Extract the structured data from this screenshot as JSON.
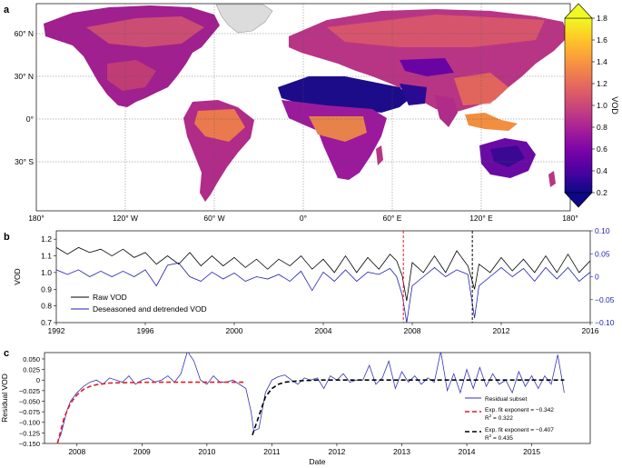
{
  "panel_a": {
    "label": "a",
    "lat_ticks": [
      "60° N",
      "30° N",
      "0°",
      "30° S"
    ],
    "lon_ticks": [
      "180°",
      "120° W",
      "60° W",
      "0°",
      "60° E",
      "120° E",
      "180°"
    ],
    "colorbar": {
      "label": "VOD",
      "ticks": [
        "1.8",
        "1.6",
        "1.4",
        "1.2",
        "1.0",
        "0.8",
        "0.6",
        "0.4",
        "0.2"
      ],
      "colors": [
        "#0d0887",
        "#46039f",
        "#7201a8",
        "#9c179e",
        "#bd3786",
        "#d8576b",
        "#ed7953",
        "#fb9f3a",
        "#fdca26",
        "#f0f921"
      ]
    },
    "colors": {
      "ocean": "#ffffff",
      "ice": "#e0e0e0",
      "desert": "#1d0c8a",
      "forest": "#e8832e",
      "dry": "#8a159c",
      "mid": "#b72a8a"
    }
  },
  "panel_b": {
    "label": "b",
    "legend": [
      "Raw VOD",
      "Deseasoned and detrended VOD"
    ],
    "colors": {
      "raw": "#000000",
      "deseasoned": "#1f1fb4",
      "red": "#e31a1c",
      "black": "#000000"
    }
  },
  "panel_c": {
    "label": "c",
    "legend": {
      "residual": "Residual subset",
      "red_fit": "Exp. fit exponent = −0.342",
      "red_r2_label": "R",
      "red_r2_value": " = 0.322",
      "black_fit": "Exp. fit exponent = −0.407",
      "black_r2_label": "R",
      "black_r2_value": " = 0.435",
      "sup": "2"
    },
    "colors": {
      "residual": "#3333bb",
      "red_fit": "#e31a1c",
      "black_fit": "#000000"
    }
  },
  "chart_data": [
    {
      "type": "heatmap",
      "title": "",
      "colorbar_label": "VOD",
      "colorbar_range": [
        0.2,
        1.8
      ],
      "lat_ticks": [
        "60° N",
        "30° N",
        "0°",
        "30° S"
      ],
      "lon_ticks": [
        "180°",
        "120° W",
        "60° W",
        "0°",
        "60° E",
        "120° E",
        "180°"
      ]
    },
    {
      "type": "line",
      "xlabel": "",
      "ylabel": "VOD",
      "x_ticks": [
        "1992",
        "1996",
        "2000",
        "2004",
        "2008",
        "2012",
        "2016"
      ],
      "y_ticks": [
        "0.7",
        "0.8",
        "0.9",
        "1.0",
        "1.1",
        "1.2"
      ],
      "y2_ticks": [
        "0.10",
        "0.05",
        "0",
        "−0.05",
        "−0.10"
      ],
      "xlim": [
        1992,
        2016
      ],
      "ylim": [
        0.7,
        1.25
      ],
      "y2lim": [
        -0.1,
        0.1
      ],
      "vlines": [
        2007.6,
        2010.7
      ],
      "series": [
        {
          "name": "Raw VOD",
          "x": [
            1992.0,
            1992.5,
            1993.0,
            1993.5,
            1994.0,
            1994.5,
            1995.0,
            1995.5,
            1996.0,
            1996.5,
            1997.0,
            1997.5,
            1998.0,
            1998.5,
            1999.0,
            1999.5,
            2000.0,
            2000.5,
            2001.0,
            2001.5,
            2002.0,
            2002.5,
            2003.0,
            2003.5,
            2004.0,
            2004.5,
            2005.0,
            2005.5,
            2006.0,
            2006.5,
            2007.0,
            2007.3,
            2007.55,
            2007.75,
            2008.0,
            2008.5,
            2009.0,
            2009.5,
            2010.0,
            2010.5,
            2010.8,
            2011.0,
            2011.5,
            2012.0,
            2012.5,
            2013.0,
            2013.5,
            2014.0,
            2014.5,
            2015.0,
            2015.5,
            2016.0
          ],
          "y": [
            1.15,
            1.11,
            1.15,
            1.12,
            1.14,
            1.1,
            1.14,
            1.09,
            1.12,
            1.05,
            1.1,
            1.05,
            1.12,
            1.04,
            1.1,
            1.04,
            1.09,
            1.03,
            1.08,
            1.02,
            1.08,
            1.04,
            1.1,
            1.02,
            1.08,
            1.0,
            1.1,
            1.0,
            1.09,
            1.02,
            1.11,
            1.07,
            0.98,
            0.83,
            1.06,
            1.0,
            1.1,
            1.0,
            1.13,
            1.04,
            0.9,
            1.05,
            1.0,
            1.09,
            1.01,
            1.08,
            1.0,
            1.1,
            1.0,
            1.11,
            1.0,
            1.07
          ]
        },
        {
          "name": "Deseasoned and detrended VOD",
          "x": [
            1992.0,
            1992.5,
            1993.0,
            1993.5,
            1994.0,
            1994.5,
            1995.0,
            1995.5,
            1996.0,
            1996.5,
            1997.0,
            1997.5,
            1998.0,
            1998.5,
            1999.0,
            1999.5,
            2000.0,
            2000.5,
            2001.0,
            2001.5,
            2002.0,
            2002.5,
            2003.0,
            2003.5,
            2004.0,
            2004.5,
            2005.0,
            2005.5,
            2006.0,
            2006.5,
            2007.0,
            2007.3,
            2007.55,
            2007.75,
            2008.0,
            2008.5,
            2009.0,
            2009.5,
            2010.0,
            2010.5,
            2010.8,
            2011.0,
            2011.5,
            2012.0,
            2012.5,
            2013.0,
            2013.5,
            2014.0,
            2014.5,
            2015.0,
            2015.5,
            2016.0
          ],
          "y": [
            0.015,
            0.005,
            0.015,
            0.0,
            0.012,
            0.0,
            0.012,
            0.0,
            0.015,
            -0.02,
            0.025,
            0.03,
            0.0,
            -0.01,
            0.01,
            -0.005,
            0.008,
            -0.01,
            0.0,
            -0.005,
            0.005,
            -0.01,
            0.012,
            -0.03,
            0.01,
            -0.01,
            0.015,
            -0.01,
            0.01,
            0.005,
            0.018,
            0.0,
            -0.04,
            -0.1,
            -0.02,
            0.0,
            0.02,
            0.0,
            0.015,
            0.005,
            -0.09,
            -0.02,
            0.0,
            0.02,
            0.0,
            0.018,
            -0.01,
            0.02,
            -0.005,
            0.02,
            -0.01,
            0.01
          ]
        }
      ]
    },
    {
      "type": "line",
      "xlabel": "Date",
      "ylabel": "Residual VOD",
      "x_ticks": [
        "2008",
        "2009",
        "2010",
        "2011",
        "2012",
        "2013",
        "2014",
        "2015"
      ],
      "y_ticks": [
        "0.050",
        "0.025",
        "0",
        "−0.025",
        "−0.050",
        "−0.075",
        "−0.100",
        "−0.125",
        "−0.150"
      ],
      "xlim": [
        2007.5,
        2015.9
      ],
      "ylim": [
        -0.15,
        0.065
      ],
      "series": [
        {
          "name": "Residual subset",
          "x": [
            2007.7,
            2007.75,
            2007.8,
            2007.85,
            2007.9,
            2007.95,
            2008.0,
            2008.1,
            2008.2,
            2008.3,
            2008.4,
            2008.5,
            2008.6,
            2008.7,
            2008.8,
            2008.9,
            2009.0,
            2009.1,
            2009.2,
            2009.3,
            2009.4,
            2009.5,
            2009.6,
            2009.7,
            2009.8,
            2009.9,
            2010.0,
            2010.1,
            2010.2,
            2010.3,
            2010.4,
            2010.5,
            2010.6,
            2010.68,
            2010.72,
            2010.8,
            2010.9,
            2011.0,
            2011.1,
            2011.2,
            2011.3,
            2011.4,
            2011.5,
            2011.6,
            2011.7,
            2011.8,
            2011.9,
            2012.0,
            2012.1,
            2012.2,
            2012.3,
            2012.4,
            2012.5,
            2012.6,
            2012.7,
            2012.8,
            2012.9,
            2013.0,
            2013.1,
            2013.2,
            2013.3,
            2013.4,
            2013.5,
            2013.6,
            2013.7,
            2013.8,
            2013.9,
            2014.0,
            2014.1,
            2014.2,
            2014.3,
            2014.4,
            2014.5,
            2014.6,
            2014.7,
            2014.8,
            2014.9,
            2015.0,
            2015.1,
            2015.2,
            2015.3,
            2015.4,
            2015.5
          ],
          "y": [
            -0.145,
            -0.13,
            -0.1,
            -0.07,
            -0.05,
            -0.04,
            -0.03,
            -0.015,
            -0.005,
            0.0,
            -0.01,
            0.005,
            0.0,
            -0.005,
            0.01,
            -0.01,
            0.0,
            0.005,
            -0.005,
            0.0,
            0.01,
            -0.005,
            0.015,
            0.068,
            0.045,
            0.0,
            -0.01,
            0.01,
            -0.005,
            -0.005,
            0.0,
            -0.01,
            -0.02,
            -0.075,
            -0.12,
            -0.115,
            -0.03,
            0.0,
            0.008,
            0.012,
            0.0,
            -0.01,
            0.005,
            0.0,
            0.005,
            -0.02,
            0.01,
            0.0,
            0.015,
            -0.005,
            0.0,
            0.0,
            0.035,
            -0.01,
            0.005,
            0.045,
            -0.02,
            0.02,
            -0.005,
            0.01,
            -0.01,
            0.005,
            -0.005,
            0.068,
            -0.025,
            0.015,
            -0.03,
            0.025,
            -0.02,
            0.03,
            -0.015,
            0.015,
            -0.01,
            0.0,
            -0.03,
            0.02,
            -0.015,
            0.01,
            -0.02,
            0.01,
            -0.01,
            0.06,
            -0.03
          ]
        },
        {
          "name": "Exp. fit exponent = −0.342",
          "x": [
            2007.7,
            2007.8,
            2007.9,
            2008.0,
            2008.1,
            2008.2,
            2008.3,
            2008.5,
            2008.8,
            2009.2,
            2009.6,
            2010.0,
            2010.3,
            2010.6
          ],
          "y": [
            -0.15,
            -0.09,
            -0.055,
            -0.035,
            -0.022,
            -0.015,
            -0.011,
            -0.007,
            -0.006,
            -0.005,
            -0.005,
            -0.005,
            -0.005,
            -0.005
          ]
        },
        {
          "name": "Exp. fit exponent = −0.407",
          "x": [
            2010.7,
            2010.8,
            2010.9,
            2011.0,
            2011.1,
            2011.2,
            2011.4,
            2011.7,
            2012.0,
            2012.5,
            2013.0,
            2013.5,
            2014.0,
            2014.5,
            2015.0,
            2015.5
          ],
          "y": [
            -0.13,
            -0.085,
            -0.04,
            -0.02,
            -0.01,
            -0.005,
            -0.002,
            0.0,
            0.0,
            0.0,
            0.0,
            0.0,
            0.0,
            0.0,
            0.0,
            0.0
          ]
        }
      ]
    }
  ]
}
